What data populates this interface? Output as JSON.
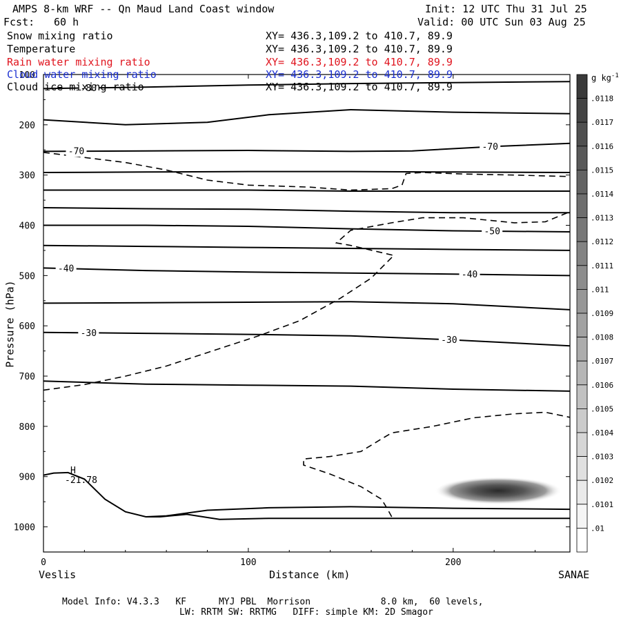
{
  "header": {
    "title": "AMPS 8-km WRF -- Qn Maud Land Coast window",
    "fcst_label": "Fcst:",
    "fcst_value": "60 h",
    "init": "Init: 12 UTC Thu 31 Jul 25",
    "valid": "Valid: 00 UTC Sun 03 Aug 25"
  },
  "fields": [
    {
      "name": "Snow mixing ratio",
      "xy": "XY= 436.3,109.2 to 410.7, 89.9",
      "color": "#000000"
    },
    {
      "name": "Temperature",
      "xy": "XY= 436.3,109.2 to 410.7, 89.9",
      "color": "#000000"
    },
    {
      "name": "Rain water mixing ratio",
      "xy": "XY= 436.3,109.2 to 410.7, 89.9",
      "color": "#e0141e"
    },
    {
      "name": "Cloud water mixing ratio",
      "xy": "XY= 436.3,109.2 to 410.7, 89.9",
      "color": "#1a2fd0"
    },
    {
      "name": "Cloud ice mixing ratio",
      "xy": "XY= 436.3,109.2 to 410.7, 89.9",
      "color": "#000000"
    }
  ],
  "footer": {
    "line1": "Model Info: V4.3.3   KF      MYJ PBL  Morrison             8.0 km,  60 levels,",
    "line2": "LW: RRTM SW: RRTMG   DIFF: simple KM: 2D Smagor"
  },
  "chart_data": {
    "type": "contour",
    "xlabel": "Distance (km)",
    "ylabel": "Pressure (hPa)",
    "xlim": [
      0,
      257
    ],
    "ylim": [
      1050,
      100
    ],
    "x_ticks": [
      0,
      100,
      200
    ],
    "y_ticks": [
      100,
      200,
      300,
      400,
      500,
      600,
      700,
      800,
      900,
      1000
    ],
    "x_start_label": "Veslis",
    "x_end_label": "SANAE",
    "colorbar": {
      "unit": "g kg",
      "unit_sup": "-1",
      "levels": [
        ".0118",
        ".0117",
        ".0116",
        ".0115",
        ".0114",
        ".0113",
        ".0112",
        ".0111",
        ".011",
        ".0109",
        ".0108",
        ".0107",
        ".0106",
        ".0105",
        ".0104",
        ".0103",
        ".0102",
        ".0101",
        ".01"
      ]
    },
    "temperature_isotherms": [
      {
        "label": "-80",
        "points": [
          [
            0,
            128
          ],
          [
            50,
            125
          ],
          [
            100,
            121
          ],
          [
            150,
            118
          ],
          [
            200,
            116
          ],
          [
            257,
            114
          ]
        ]
      },
      {
        "points": [
          [
            0,
            190
          ],
          [
            40,
            200
          ],
          [
            80,
            195
          ],
          [
            110,
            180
          ],
          [
            150,
            170
          ],
          [
            200,
            175
          ],
          [
            257,
            178
          ]
        ]
      },
      {
        "label": "-70",
        "points": [
          [
            0,
            253
          ],
          [
            50,
            252
          ],
          [
            100,
            251
          ],
          [
            150,
            253
          ],
          [
            180,
            252
          ],
          [
            220,
            243
          ],
          [
            257,
            237
          ]
        ]
      },
      {
        "points": [
          [
            0,
            295
          ],
          [
            50,
            294
          ],
          [
            100,
            293
          ],
          [
            150,
            293
          ],
          [
            200,
            294
          ],
          [
            257,
            295
          ]
        ]
      },
      {
        "points": [
          [
            0,
            330
          ],
          [
            100,
            330
          ],
          [
            150,
            332
          ],
          [
            200,
            332
          ],
          [
            257,
            332
          ]
        ]
      },
      {
        "points": [
          [
            0,
            365
          ],
          [
            50,
            367
          ],
          [
            100,
            368
          ],
          [
            150,
            372
          ],
          [
            200,
            375
          ],
          [
            257,
            375
          ]
        ]
      },
      {
        "label": "-50",
        "points": [
          [
            0,
            400
          ],
          [
            50,
            400
          ],
          [
            100,
            402
          ],
          [
            150,
            407
          ],
          [
            200,
            411
          ],
          [
            257,
            413
          ]
        ]
      },
      {
        "points": [
          [
            0,
            440
          ],
          [
            50,
            442
          ],
          [
            100,
            444
          ],
          [
            150,
            446
          ],
          [
            200,
            448
          ],
          [
            257,
            450
          ]
        ]
      },
      {
        "label": "-40",
        "points": [
          [
            0,
            485
          ],
          [
            50,
            490
          ],
          [
            100,
            493
          ],
          [
            150,
            495
          ],
          [
            200,
            497
          ],
          [
            257,
            500
          ]
        ]
      },
      {
        "points": [
          [
            0,
            555
          ],
          [
            50,
            554
          ],
          [
            100,
            553
          ],
          [
            150,
            552
          ],
          [
            200,
            556
          ],
          [
            257,
            568
          ]
        ]
      },
      {
        "label": "-30",
        "points": [
          [
            0,
            613
          ],
          [
            50,
            615
          ],
          [
            100,
            617
          ],
          [
            150,
            620
          ],
          [
            200,
            628
          ],
          [
            257,
            640
          ]
        ]
      },
      {
        "points": [
          [
            0,
            710
          ],
          [
            50,
            716
          ],
          [
            100,
            718
          ],
          [
            150,
            720
          ],
          [
            200,
            726
          ],
          [
            257,
            730
          ]
        ]
      }
    ],
    "surface_lines": [
      {
        "points": [
          [
            0,
            897
          ],
          [
            5,
            893
          ],
          [
            12,
            892
          ],
          [
            20,
            905
          ],
          [
            30,
            945
          ],
          [
            40,
            970
          ],
          [
            50,
            980
          ],
          [
            57,
            980
          ],
          [
            70,
            975
          ],
          [
            86,
            985
          ],
          [
            110,
            983
          ],
          [
            150,
            983
          ],
          [
            200,
            983
          ],
          [
            257,
            983
          ]
        ]
      },
      {
        "points": [
          [
            50,
            980
          ],
          [
            60,
            978
          ],
          [
            80,
            967
          ],
          [
            110,
            962
          ],
          [
            150,
            960
          ],
          [
            200,
            963
          ],
          [
            257,
            965
          ]
        ]
      }
    ],
    "zero_isotherm": {
      "style": "dashed",
      "points": [
        [
          0,
          728
        ],
        [
          20,
          717
        ],
        [
          40,
          700
        ],
        [
          60,
          680
        ],
        [
          75,
          660
        ],
        [
          90,
          640
        ],
        [
          105,
          620
        ],
        [
          125,
          590
        ],
        [
          145,
          545
        ],
        [
          160,
          505
        ],
        [
          171,
          460
        ],
        [
          150,
          440
        ],
        [
          143,
          435
        ],
        [
          150,
          410
        ],
        [
          170,
          395
        ],
        [
          185,
          385
        ],
        [
          205,
          385
        ],
        [
          230,
          395
        ],
        [
          245,
          393
        ],
        [
          257,
          373
        ]
      ]
    },
    "upper_dashed": {
      "style": "dashed",
      "points": [
        [
          0,
          255
        ],
        [
          20,
          265
        ],
        [
          40,
          275
        ],
        [
          60,
          290
        ],
        [
          80,
          310
        ],
        [
          100,
          320
        ],
        [
          130,
          324
        ],
        [
          150,
          330
        ],
        [
          170,
          327
        ],
        [
          175,
          320
        ],
        [
          177,
          297
        ],
        [
          185,
          295
        ],
        [
          205,
          298
        ],
        [
          230,
          300
        ],
        [
          257,
          303
        ]
      ]
    },
    "lower_dashed": {
      "style": "dashed",
      "points": [
        [
          170,
          980
        ],
        [
          168,
          965
        ],
        [
          165,
          945
        ],
        [
          155,
          920
        ],
        [
          140,
          895
        ],
        [
          127,
          877
        ],
        [
          127,
          865
        ],
        [
          140,
          860
        ],
        [
          155,
          850
        ],
        [
          165,
          825
        ],
        [
          170,
          813
        ],
        [
          190,
          800
        ],
        [
          210,
          783
        ],
        [
          230,
          775
        ],
        [
          245,
          772
        ],
        [
          257,
          782
        ]
      ]
    },
    "max_marker": {
      "symbol": "H",
      "value": "-21.78",
      "x": 14,
      "pressure": 895
    },
    "snow_blob": {
      "center_x": 222,
      "center_pressure": 928,
      "value_max": 0.0118
    }
  }
}
